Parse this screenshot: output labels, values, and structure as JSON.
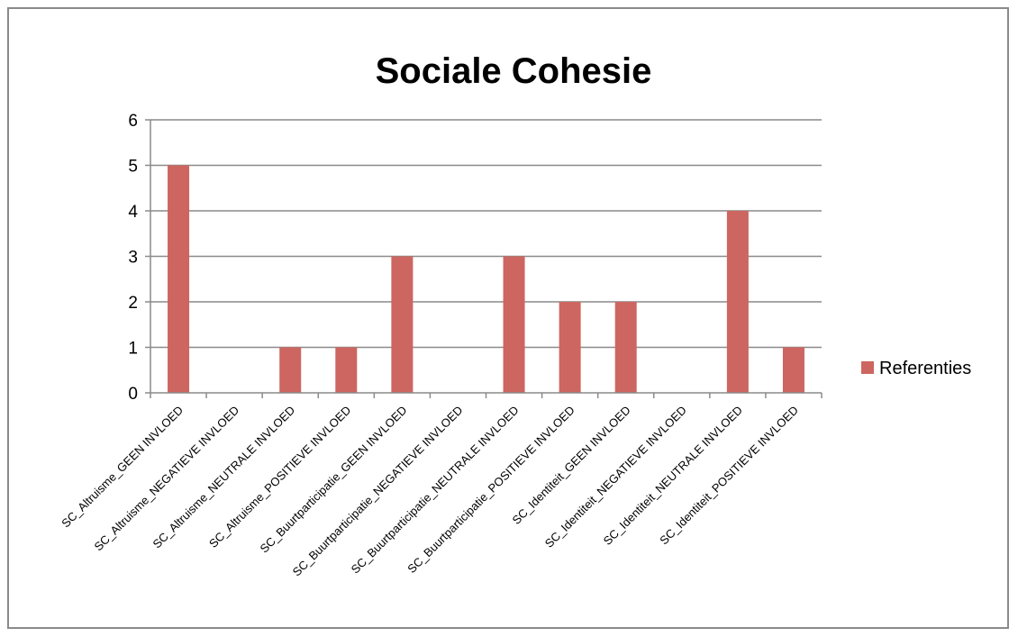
{
  "chart_data": {
    "type": "bar",
    "title": "Sociale Cohesie",
    "xlabel": "",
    "ylabel": "",
    "ylim": [
      0,
      6
    ],
    "yticks": [
      0,
      1,
      2,
      3,
      4,
      5,
      6
    ],
    "grid": true,
    "legend_position": "right",
    "categories": [
      "SC_Altruisme_GEEN INVLOED",
      "SC_Altruisme_NEGATIEVE INVLOED",
      "SC_Altruisme_NEUTRALE INVLOED",
      "SC_Altruisme_POSITIEVE INVLOED",
      "SC_Buurtparticipatie_GEEN INVLOED",
      "SC_Buurtparticipatie_NEGATIEVE INVLOED",
      "SC_Buurtparticipatie_NEUTRALE INVLOED",
      "SC_Buurtparticipatie_POSITIEVE INVLOED",
      "SC_Identiteit_GEEN INVLOED",
      "SC_Identiteit_NEGATIEVE INVLOED",
      "SC_Identiteit_NEUTRALE INVLOED",
      "SC_Identiteit_POSITIEVE INVLOED"
    ],
    "series": [
      {
        "name": "Referenties",
        "color": "#cd6660",
        "values": [
          5,
          0,
          1,
          1,
          3,
          0,
          3,
          2,
          2,
          0,
          4,
          1
        ]
      }
    ]
  }
}
